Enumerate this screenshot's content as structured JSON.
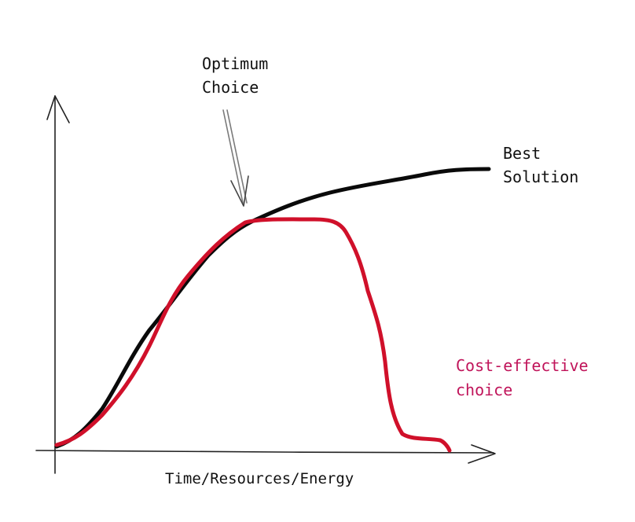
{
  "annotations": {
    "optimum_line1": "Optimum",
    "optimum_line2": "Choice",
    "best_line1": "Best",
    "best_line2": "Solution",
    "cost_line1": "Cost-effective",
    "cost_line2": "choice"
  },
  "axis": {
    "xlabel": "Time/Resources/Energy"
  },
  "colors": {
    "ink": "#111111",
    "best_curve": "#0a0a0a",
    "cost_curve": "#d0102a",
    "cost_label": "#c0145a",
    "arrow": "#7a7a7a"
  }
}
